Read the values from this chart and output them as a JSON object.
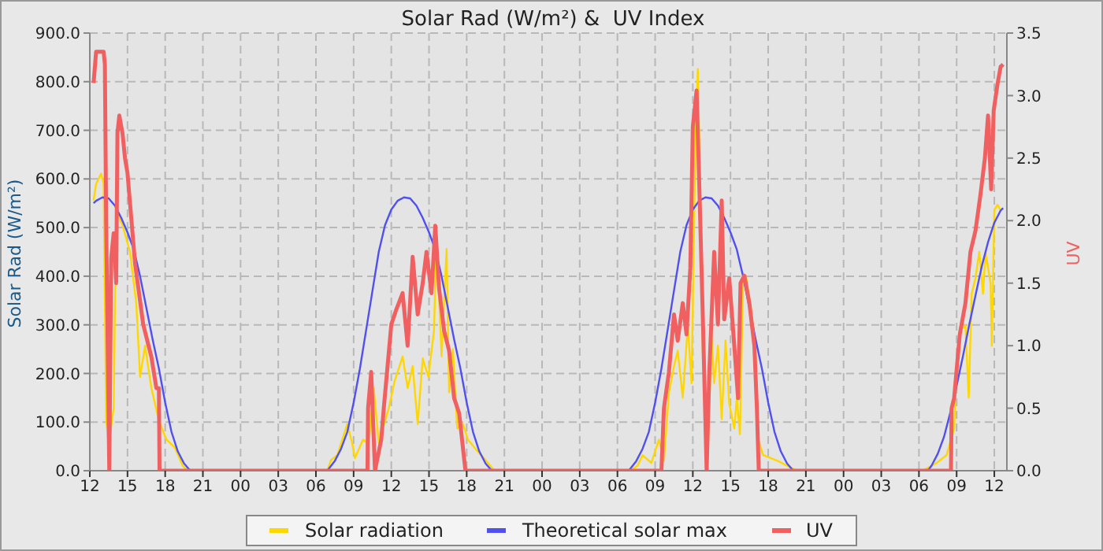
{
  "chart_data": {
    "type": "line",
    "title": "Solar Rad (W/m²) &  UV Index",
    "ylabel": "Solar Rad (W/m²)",
    "y2label": "UV",
    "xlim": [
      12,
      85
    ],
    "xticks": [
      {
        "value": 12,
        "label": "12"
      },
      {
        "value": 15,
        "label": "15"
      },
      {
        "value": 18,
        "label": "18"
      },
      {
        "value": 21,
        "label": "21"
      },
      {
        "value": 24,
        "label": "00"
      },
      {
        "value": 27,
        "label": "03"
      },
      {
        "value": 30,
        "label": "06"
      },
      {
        "value": 33,
        "label": "09"
      },
      {
        "value": 36,
        "label": "12"
      },
      {
        "value": 39,
        "label": "15"
      },
      {
        "value": 42,
        "label": "18"
      },
      {
        "value": 45,
        "label": "21"
      },
      {
        "value": 48,
        "label": "00"
      },
      {
        "value": 51,
        "label": "03"
      },
      {
        "value": 54,
        "label": "06"
      },
      {
        "value": 57,
        "label": "09"
      },
      {
        "value": 60,
        "label": "12"
      },
      {
        "value": 63,
        "label": "15"
      },
      {
        "value": 66,
        "label": "18"
      },
      {
        "value": 69,
        "label": "21"
      },
      {
        "value": 72,
        "label": "00"
      },
      {
        "value": 75,
        "label": "03"
      },
      {
        "value": 78,
        "label": "06"
      },
      {
        "value": 81,
        "label": "09"
      },
      {
        "value": 84,
        "label": "12"
      }
    ],
    "ylim": [
      0,
      900
    ],
    "yticks": [
      {
        "value": 0,
        "label": "0.0"
      },
      {
        "value": 100,
        "label": "100.0"
      },
      {
        "value": 200,
        "label": "200.0"
      },
      {
        "value": 300,
        "label": "300.0"
      },
      {
        "value": 400,
        "label": "400.0"
      },
      {
        "value": 500,
        "label": "500.0"
      },
      {
        "value": 600,
        "label": "600.0"
      },
      {
        "value": 700,
        "label": "700.0"
      },
      {
        "value": 800,
        "label": "800.0"
      },
      {
        "value": 900,
        "label": "900.0"
      }
    ],
    "y2lim": [
      0,
      3.5
    ],
    "y2ticks": [
      {
        "value": 0,
        "label": "0.0"
      },
      {
        "value": 0.5,
        "label": "0.5"
      },
      {
        "value": 1,
        "label": "1.0"
      },
      {
        "value": 1.5,
        "label": "1.5"
      },
      {
        "value": 2,
        "label": "2.0"
      },
      {
        "value": 2.5,
        "label": "2.5"
      },
      {
        "value": 3,
        "label": "3.0"
      },
      {
        "value": 3.5,
        "label": "3.5"
      }
    ],
    "grid": true,
    "legend": "bottom",
    "series": [
      {
        "name": "Solar radiation",
        "color": "#ffd700",
        "x": [
          12.3,
          12.5,
          12.9,
          13.1,
          13.3,
          13.5,
          13.9,
          14.1,
          14.6,
          15.2,
          15.7,
          16,
          16.4,
          16.9,
          17.5,
          18.1,
          18.75,
          19.4,
          19.8,
          30.9,
          31.2,
          31.7,
          32.5,
          32.9,
          33.1,
          33.75,
          34.2,
          34.6,
          35,
          35.8,
          36.25,
          36.9,
          37.3,
          37.7,
          38.1,
          38.5,
          38.95,
          39.4,
          39.6,
          40,
          40.4,
          40.6,
          40.9,
          41.25,
          41.7,
          42.1,
          42.9,
          43.5,
          44.2,
          55,
          55.6,
          56,
          56.7,
          57.3,
          57.7,
          58.1,
          58.5,
          58.8,
          59.2,
          59.6,
          59.9,
          60.2,
          60.4,
          60.6,
          60.8,
          61.2,
          61.5,
          61.7,
          62,
          62.3,
          62.6,
          62.9,
          63.3,
          63.5,
          63.75,
          64,
          64.25,
          64.7,
          65,
          65.2,
          65.6,
          66.7,
          67.9,
          68.3,
          78.3,
          79.4,
          80.2,
          80.8,
          81,
          81.3,
          81.7,
          81.96,
          82.2,
          82.5,
          82.8,
          83.1,
          83.3,
          83.7,
          83.8,
          84,
          84.25,
          84.5,
          84.7
        ],
        "values": [
          556,
          590,
          611,
          590,
          106,
          55,
          129,
          537,
          505,
          450,
          344,
          193,
          257,
          170,
          103,
          64,
          48,
          10,
          0,
          0,
          22,
          32,
          96,
          55,
          26,
          64,
          55,
          170,
          58,
          129,
          183,
          235,
          170,
          215,
          96,
          231,
          193,
          289,
          482,
          235,
          456,
          161,
          250,
          87,
          96,
          64,
          39,
          22,
          0,
          0,
          10,
          32,
          16,
          64,
          20,
          161,
          215,
          247,
          150,
          299,
          180,
          665,
          826,
          556,
          235,
          42,
          278,
          180,
          257,
          106,
          268,
          138,
          87,
          150,
          75,
          386,
          397,
          322,
          235,
          64,
          32,
          21,
          5,
          0,
          0,
          16,
          32,
          87,
          215,
          289,
          299,
          150,
          364,
          396,
          450,
          364,
          450,
          386,
          257,
          536,
          547,
          536,
          540
        ]
      },
      {
        "name": "Theoretical solar max",
        "color": "#5050f0",
        "x": [
          12.3,
          12.5,
          13,
          13.5,
          14,
          14.5,
          15,
          15.5,
          16,
          16.5,
          17,
          17.5,
          18,
          18.5,
          19,
          19.5,
          20,
          30.9,
          31.5,
          32,
          32.5,
          33,
          33.5,
          34,
          34.5,
          35,
          35.5,
          36,
          36.5,
          37,
          37.5,
          38,
          38.5,
          39,
          39.5,
          40,
          40.5,
          41,
          41.5,
          42,
          42.5,
          43,
          43.5,
          44,
          54.9,
          55.5,
          56,
          56.5,
          57,
          57.5,
          58,
          58.5,
          59,
          59.5,
          60,
          60.5,
          61,
          61.5,
          62,
          62.5,
          63,
          63.5,
          64,
          64.5,
          65,
          65.5,
          66,
          66.5,
          67,
          67.5,
          68,
          78.7,
          79,
          79.5,
          80,
          80.5,
          81,
          81.5,
          82,
          82.5,
          83,
          83.5,
          84,
          84.5,
          84.7
        ],
        "values": [
          550,
          555,
          562,
          560,
          545,
          520,
          490,
          455,
          400,
          335,
          270,
          210,
          140,
          80,
          40,
          15,
          0,
          0,
          20,
          45,
          80,
          140,
          210,
          290,
          370,
          450,
          505,
          537,
          555,
          562,
          560,
          545,
          520,
          490,
          455,
          400,
          335,
          270,
          210,
          140,
          80,
          40,
          15,
          0,
          0,
          20,
          45,
          80,
          140,
          210,
          290,
          370,
          450,
          505,
          537,
          555,
          562,
          560,
          545,
          520,
          490,
          455,
          400,
          335,
          270,
          210,
          140,
          80,
          40,
          15,
          0,
          0,
          10,
          35,
          70,
          120,
          175,
          235,
          300,
          360,
          420,
          470,
          510,
          535,
          540
        ]
      },
      {
        "name": "UV",
        "color": "#f06060",
        "axis": "y2",
        "x": [
          12.3,
          12.5,
          13.1,
          13.2,
          13.3,
          13.45,
          13.55,
          13.7,
          13.9,
          14.1,
          14.2,
          14.35,
          14.6,
          14.8,
          15,
          15.6,
          16.25,
          16.9,
          17.3,
          17.5,
          17.55,
          34.1,
          34.15,
          34.4,
          34.7,
          35.2,
          35.4,
          36,
          36.4,
          36.9,
          37.3,
          37.7,
          38.1,
          38.5,
          38.8,
          39.2,
          39.5,
          39.8,
          40.2,
          40.6,
          41,
          41.4,
          41.9,
          57.5,
          57.7,
          58.1,
          58.5,
          58.8,
          59.2,
          59.5,
          59.8,
          60,
          60.3,
          60.5,
          60.8,
          61.1,
          61.3,
          61.7,
          62,
          62.3,
          62.5,
          62.9,
          63.3,
          63.6,
          63.8,
          64.1,
          64.5,
          64.9,
          65.1,
          65.25,
          80.55,
          80.6,
          80.8,
          81.25,
          81.7,
          82.1,
          82.5,
          82.9,
          83.25,
          83.5,
          83.75,
          83.95,
          84.25,
          84.5,
          84.7
        ],
        "values": [
          3.1,
          3.35,
          3.35,
          3.25,
          2,
          0.8,
          0,
          1.7,
          1.9,
          1.5,
          2.7,
          2.84,
          2.7,
          2.5,
          2.38,
          1.66,
          1.17,
          0.91,
          0.66,
          0.66,
          0,
          0,
          0.5,
          0.79,
          0,
          0.25,
          0.5,
          1.17,
          1.29,
          1.42,
          1,
          1.71,
          1.25,
          1.5,
          1.75,
          1.42,
          1.96,
          1.46,
          1.12,
          0.96,
          0.58,
          0.46,
          0,
          0,
          0.5,
          0.79,
          1.25,
          1.04,
          1.34,
          1.09,
          1.62,
          2.75,
          3.04,
          2.34,
          1.21,
          0,
          0.75,
          1.75,
          1.17,
          2.16,
          1.21,
          1.54,
          1,
          0.58,
          1.5,
          1.56,
          1.34,
          1,
          0.5,
          0,
          0,
          0.5,
          0.58,
          1.09,
          1.34,
          1.75,
          1.92,
          2.21,
          2.5,
          2.84,
          2.25,
          2.88,
          3.09,
          3.23,
          3.25
        ]
      }
    ]
  }
}
